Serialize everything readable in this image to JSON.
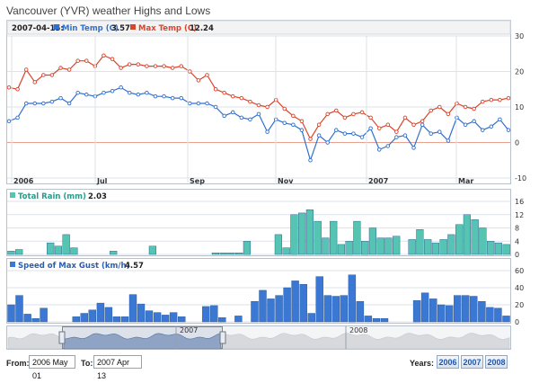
{
  "title": "Vancouver (YVR) weather Highs and Lows",
  "colors": {
    "min_temp": "#2f6fcf",
    "max_temp": "#d9442b",
    "rain": "#55c4b2",
    "gust": "#3b78d4",
    "grid": "#dde3ea",
    "navigator": "#5874a0"
  },
  "legend": {
    "date": "2007-04-15:",
    "min_label": "Min Temp (C)",
    "min_value": "3.57",
    "max_label": "Max Temp (C)",
    "max_value": "12.24",
    "rain_label": "Total Rain (mm)",
    "rain_value": "2.03",
    "gust_label": "Speed of Max Gust (km/h)",
    "gust_value": "4.57"
  },
  "x_ticks": [
    "2006",
    "Jul",
    "Sep",
    "Nov",
    "2007",
    "Mar"
  ],
  "navigator_labels": [
    "2007",
    "2008"
  ],
  "controls": {
    "from_label": "From:",
    "from_value": "2006 May 01",
    "to_label": "To:",
    "to_value": "2007 Apr 13",
    "years_label": "Years:",
    "years": [
      "2006",
      "2007",
      "2008"
    ]
  },
  "chart_data": [
    {
      "type": "line",
      "title": "Vancouver (YVR) weather Highs and Lows",
      "ylim": [
        -10,
        30
      ],
      "y_ticks": [
        -10,
        0,
        10,
        20,
        30
      ],
      "grid": true,
      "legend_position": "top-left",
      "series": [
        {
          "name": "Min Temp (C)",
          "values": [
            6,
            7,
            11,
            11,
            11,
            11.5,
            12.5,
            11,
            14,
            13.5,
            13,
            14,
            14.5,
            15.5,
            14,
            13.5,
            14,
            13,
            13,
            12.5,
            12.5,
            11,
            11,
            11,
            10,
            7.5,
            8.5,
            7,
            6.5,
            8,
            3,
            6.5,
            5.5,
            5,
            3.5,
            -5,
            2,
            0,
            3.5,
            2.5,
            2.5,
            1.5,
            4,
            -2,
            -1,
            1.5,
            2,
            -1.5,
            5,
            2.5,
            3,
            0.5,
            7,
            5,
            6,
            3.5,
            4.5,
            6.5,
            3.5
          ]
        },
        {
          "name": "Max Temp (C)",
          "values": [
            15.5,
            15,
            20.5,
            17,
            19,
            19,
            21,
            20.5,
            23,
            23,
            21.5,
            24.5,
            23.5,
            21,
            22,
            22,
            21.5,
            21.5,
            21.5,
            21,
            21.5,
            20,
            17.5,
            19,
            15,
            14,
            13,
            12.5,
            11.5,
            10.5,
            10,
            12,
            9.5,
            7.5,
            6,
            1,
            5,
            8,
            9,
            7,
            8,
            8.5,
            7,
            4,
            5,
            3,
            7,
            5,
            6,
            9,
            10,
            8,
            11,
            10,
            9.5,
            11.5,
            12,
            12,
            12.5
          ]
        }
      ]
    },
    {
      "type": "bar",
      "ylim": [
        0,
        16
      ],
      "y_ticks": [
        0,
        4,
        8,
        12,
        16
      ],
      "series": [
        {
          "name": "Total Rain (mm)",
          "values": [
            1,
            1.5,
            0,
            0,
            0,
            3.5,
            2.5,
            6,
            2,
            0,
            0,
            0,
            0,
            1,
            0,
            0,
            0,
            0,
            2.5,
            0,
            0,
            0,
            0,
            0,
            0,
            0,
            0.5,
            0.5,
            0.5,
            0.5,
            4,
            0,
            0,
            0,
            6,
            2,
            12,
            12.5,
            13.5,
            10,
            5,
            10,
            3,
            4,
            10,
            4,
            8,
            5,
            5,
            5.5,
            0,
            4.5,
            7.5,
            4.5,
            3.5,
            4.5,
            6,
            9,
            12,
            10.5,
            8,
            4,
            3.5,
            3
          ]
        }
      ]
    },
    {
      "type": "bar",
      "ylim": [
        0,
        60
      ],
      "y_ticks": [
        0,
        20,
        40,
        60
      ],
      "series": [
        {
          "name": "Speed of Max Gust (km/h)",
          "values": [
            20,
            31,
            9,
            4,
            16,
            0,
            0,
            0,
            6,
            10,
            14,
            22,
            17,
            6,
            6,
            32,
            21,
            13,
            11,
            8,
            11,
            6,
            0,
            0,
            18,
            19,
            5,
            0,
            7,
            0,
            24,
            37,
            27,
            31,
            40,
            48,
            44,
            10,
            53,
            31,
            30,
            31,
            55,
            24,
            7,
            4,
            4,
            0,
            0,
            0,
            25,
            34,
            27,
            20,
            19,
            31,
            31,
            30,
            24,
            17,
            16,
            7
          ]
        }
      ]
    }
  ]
}
